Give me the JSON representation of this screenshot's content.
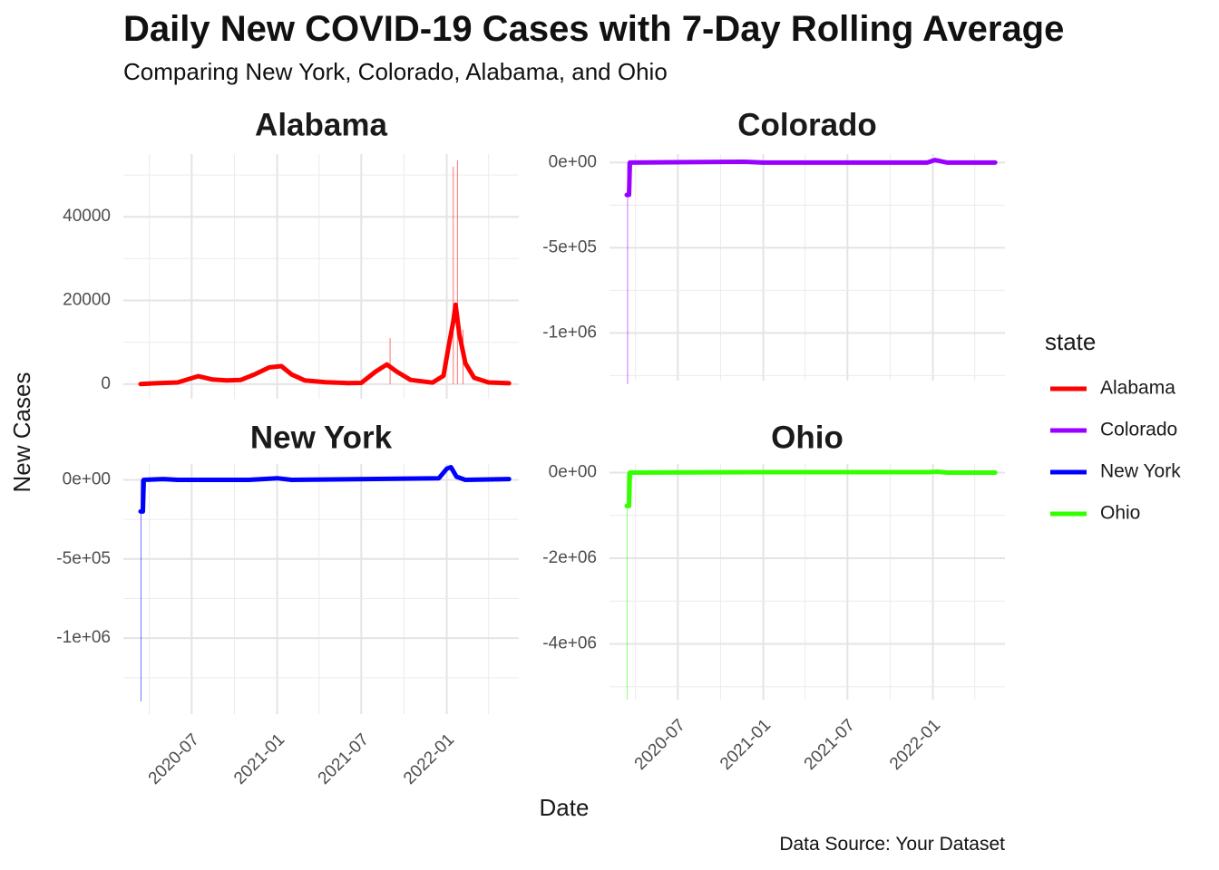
{
  "title": "Daily New COVID-19 Cases with 7-Day Rolling Average",
  "subtitle": "Comparing New York, Colorado, Alabama, and Ohio",
  "caption": "Data Source: Your Dataset",
  "chart_data": {
    "type": "line",
    "xlabel": "Date",
    "ylabel": "New Cases",
    "x_ticks": [
      "2020-07",
      "2021-01",
      "2021-07",
      "2022-01"
    ],
    "legend": {
      "title": "state",
      "position": "right",
      "items": [
        {
          "name": "Alabama",
          "color": "#ff0000"
        },
        {
          "name": "Colorado",
          "color": "#9900ff"
        },
        {
          "name": "New York",
          "color": "#0000ff"
        },
        {
          "name": "Ohio",
          "color": "#33ff00"
        }
      ]
    },
    "panels": [
      {
        "name": "Alabama",
        "color": "#ff0000",
        "ylim": [
          -3500,
          55000
        ],
        "y_ticks": [
          {
            "v": 0,
            "label": "0"
          },
          {
            "v": 20000,
            "label": "20000"
          },
          {
            "v": 40000,
            "label": "40000"
          }
        ],
        "rolling": [
          [
            "2020-03-13",
            0
          ],
          [
            "2020-04-15",
            200
          ],
          [
            "2020-06-01",
            400
          ],
          [
            "2020-07-15",
            1900
          ],
          [
            "2020-08-15",
            1100
          ],
          [
            "2020-09-15",
            900
          ],
          [
            "2020-10-15",
            1000
          ],
          [
            "2020-11-15",
            2400
          ],
          [
            "2020-12-15",
            4000
          ],
          [
            "2021-01-10",
            4300
          ],
          [
            "2021-02-01",
            2300
          ],
          [
            "2021-03-01",
            900
          ],
          [
            "2021-04-15",
            450
          ],
          [
            "2021-06-01",
            250
          ],
          [
            "2021-07-01",
            300
          ],
          [
            "2021-08-01",
            3000
          ],
          [
            "2021-08-25",
            4700
          ],
          [
            "2021-09-15",
            3000
          ],
          [
            "2021-10-15",
            1000
          ],
          [
            "2021-12-01",
            350
          ],
          [
            "2021-12-25",
            2000
          ],
          [
            "2022-01-05",
            9000
          ],
          [
            "2022-01-15",
            15000
          ],
          [
            "2022-01-20",
            19000
          ],
          [
            "2022-01-28",
            12000
          ],
          [
            "2022-02-10",
            5000
          ],
          [
            "2022-03-01",
            1500
          ],
          [
            "2022-04-01",
            400
          ],
          [
            "2022-05-15",
            200
          ]
        ],
        "spikes": [
          [
            "2021-09-01",
            11000
          ],
          [
            "2022-01-15",
            52000
          ],
          [
            "2022-01-24",
            53500
          ],
          [
            "2022-02-05",
            13000
          ]
        ]
      },
      {
        "name": "Colorado",
        "color": "#9900ff",
        "ylim": [
          -1280000,
          50000
        ],
        "y_ticks": [
          {
            "v": 0,
            "label": "0e+00"
          },
          {
            "v": -500000,
            "label": "-5e+05"
          },
          {
            "v": -1000000,
            "label": "-1e+06"
          }
        ],
        "rolling": [
          [
            "2020-03-13",
            -190000
          ],
          [
            "2020-03-18",
            -190000
          ],
          [
            "2020-03-20",
            0
          ],
          [
            "2020-11-20",
            5000
          ],
          [
            "2021-01-01",
            0
          ],
          [
            "2021-12-20",
            0
          ],
          [
            "2022-01-05",
            15000
          ],
          [
            "2022-02-01",
            0
          ],
          [
            "2022-05-15",
            0
          ]
        ],
        "spikes": [
          [
            "2020-03-15",
            -1300000
          ]
        ]
      },
      {
        "name": "New York",
        "color": "#0000ff",
        "ylim": [
          -1480000,
          100000
        ],
        "y_ticks": [
          {
            "v": 0,
            "label": "0e+00"
          },
          {
            "v": -500000,
            "label": "-5e+05"
          },
          {
            "v": -1000000,
            "label": "-1e+06"
          }
        ],
        "rolling": [
          [
            "2020-03-13",
            -200000
          ],
          [
            "2020-03-18",
            -200000
          ],
          [
            "2020-03-20",
            0
          ],
          [
            "2020-05-01",
            5000
          ],
          [
            "2020-06-01",
            0
          ],
          [
            "2020-11-01",
            0
          ],
          [
            "2021-01-01",
            10000
          ],
          [
            "2021-02-01",
            0
          ],
          [
            "2021-12-15",
            10000
          ],
          [
            "2022-01-01",
            70000
          ],
          [
            "2022-01-10",
            80000
          ],
          [
            "2022-01-22",
            20000
          ],
          [
            "2022-02-10",
            0
          ],
          [
            "2022-05-15",
            5000
          ]
        ],
        "spikes": [
          [
            "2020-03-14",
            -1400000
          ]
        ]
      },
      {
        "name": "Ohio",
        "color": "#33ff00",
        "ylim": [
          -5300000,
          200000
        ],
        "y_ticks": [
          {
            "v": 0,
            "label": "0e+00"
          },
          {
            "v": -2000000,
            "label": "-2e+06"
          },
          {
            "v": -4000000,
            "label": "-4e+06"
          }
        ],
        "rolling": [
          [
            "2020-03-13",
            -780000
          ],
          [
            "2020-03-18",
            -780000
          ],
          [
            "2020-03-20",
            0
          ],
          [
            "2021-01-01",
            10000
          ],
          [
            "2021-12-25",
            10000
          ],
          [
            "2022-01-10",
            20000
          ],
          [
            "2022-02-01",
            0
          ],
          [
            "2022-05-15",
            0
          ]
        ],
        "spikes": [
          [
            "2020-03-14",
            -5300000
          ]
        ]
      }
    ]
  }
}
